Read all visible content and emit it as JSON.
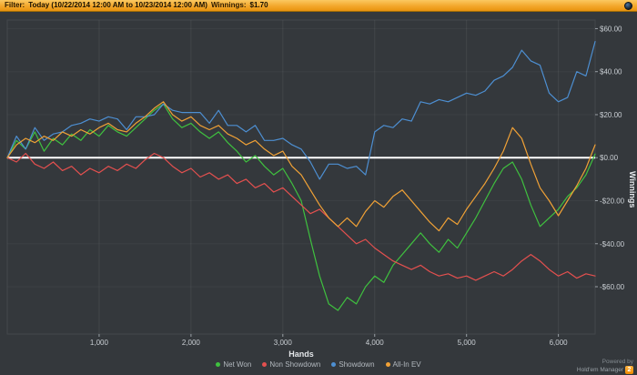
{
  "filter_bar": {
    "filter_label": "Filter:",
    "filter_value": "Today (10/22/2014 12:00 AM to 10/23/2014 12:00 AM)",
    "winnings_label": "Winnings:",
    "winnings_value": "$1.70"
  },
  "footer": {
    "powered_by": "Powered by",
    "brand": "Hold'em Manager",
    "brand_badge": "2"
  },
  "colors": {
    "topbar_start": "#fbc961",
    "topbar_end": "#e8930f",
    "background": "#34383c",
    "zero_line": "#ffffff",
    "grid": "rgba(255,255,255,0.07)"
  },
  "chart_data": {
    "type": "line",
    "title": "",
    "xlabel": "Hands",
    "ylabel": "Winnings",
    "xlim": [
      0,
      6400
    ],
    "ylim": [
      -82,
      64
    ],
    "grid": true,
    "legend_position": "bottom",
    "x_ticks": {
      "values": [
        1000,
        2000,
        3000,
        4000,
        5000,
        6000
      ],
      "labels": [
        "1,000",
        "2,000",
        "3,000",
        "4,000",
        "5,000",
        "6,000"
      ]
    },
    "y_ticks": {
      "values": [
        60,
        40,
        20,
        0,
        -20,
        -40,
        -60
      ],
      "labels": [
        "$60.00",
        "$40.00",
        "$20.00",
        "$0.00",
        "-$20.00",
        "-$40.00",
        "-$60.00"
      ]
    },
    "zero_line_value": 0,
    "x": [
      0,
      100,
      200,
      300,
      400,
      500,
      600,
      700,
      800,
      900,
      1000,
      1100,
      1200,
      1300,
      1400,
      1500,
      1600,
      1700,
      1800,
      1900,
      2000,
      2100,
      2200,
      2300,
      2400,
      2500,
      2600,
      2700,
      2800,
      2900,
      3000,
      3100,
      3200,
      3300,
      3400,
      3500,
      3600,
      3700,
      3800,
      3900,
      4000,
      4100,
      4200,
      4300,
      4400,
      4500,
      4600,
      4700,
      4800,
      4900,
      5000,
      5100,
      5200,
      5300,
      5400,
      5500,
      5600,
      5700,
      5800,
      5900,
      6000,
      6100,
      6200,
      6300,
      6400
    ],
    "series": [
      {
        "name": "Net Won",
        "color": "#3fc13f",
        "values": [
          0,
          8,
          4,
          12,
          3,
          9,
          6,
          11,
          8,
          13,
          10,
          15,
          12,
          10,
          14,
          18,
          22,
          25,
          18,
          14,
          16,
          12,
          9,
          12,
          7,
          3,
          -2,
          1,
          -4,
          -8,
          -5,
          -12,
          -20,
          -38,
          -55,
          -68,
          -71,
          -65,
          -68,
          -60,
          -55,
          -58,
          -50,
          -45,
          -40,
          -35,
          -40,
          -44,
          -38,
          -42,
          -35,
          -28,
          -20,
          -12,
          -5,
          -2,
          -10,
          -22,
          -32,
          -28,
          -24,
          -18,
          -14,
          -8,
          1.7
        ]
      },
      {
        "name": "Non Showdown",
        "color": "#e4504f",
        "values": [
          0,
          -2,
          2,
          -3,
          -5,
          -2,
          -6,
          -4,
          -8,
          -5,
          -7,
          -4,
          -6,
          -3,
          -5,
          -1,
          2,
          0,
          -4,
          -7,
          -5,
          -9,
          -7,
          -10,
          -8,
          -12,
          -10,
          -14,
          -12,
          -16,
          -14,
          -18,
          -22,
          -26,
          -24,
          -28,
          -32,
          -36,
          -40,
          -38,
          -42,
          -45,
          -48,
          -50,
          -52,
          -50,
          -53,
          -55,
          -54,
          -56,
          -55,
          -57,
          -55,
          -53,
          -55,
          -52,
          -48,
          -45,
          -48,
          -52,
          -55,
          -53,
          -56,
          -54,
          -55
        ]
      },
      {
        "name": "Showdown",
        "color": "#4d8fd2",
        "values": [
          0,
          10,
          4,
          14,
          8,
          11,
          12,
          15,
          16,
          18,
          17,
          19,
          18,
          13,
          19,
          19,
          20,
          25,
          22,
          21,
          21,
          21,
          16,
          22,
          15,
          15,
          12,
          15,
          8,
          8,
          9,
          6,
          4,
          -2,
          -10,
          -3,
          -3,
          -5,
          -4,
          -8,
          12,
          15,
          14,
          18,
          17,
          26,
          25,
          27,
          26,
          28,
          30,
          29,
          31,
          36,
          38,
          42,
          50,
          45,
          43,
          30,
          26,
          28,
          40,
          38,
          54
        ]
      },
      {
        "name": "All-In EV",
        "color": "#f0a136",
        "values": [
          0,
          6,
          9,
          7,
          10,
          8,
          12,
          10,
          13,
          11,
          14,
          16,
          13,
          12,
          16,
          19,
          23,
          26,
          20,
          17,
          19,
          15,
          13,
          15,
          11,
          9,
          6,
          8,
          4,
          1,
          3,
          -4,
          -8,
          -15,
          -22,
          -28,
          -32,
          -28,
          -32,
          -25,
          -20,
          -23,
          -18,
          -15,
          -20,
          -25,
          -30,
          -34,
          -28,
          -31,
          -24,
          -18,
          -12,
          -5,
          3,
          14,
          9,
          -3,
          -14,
          -20,
          -27,
          -20,
          -13,
          -5,
          6
        ]
      }
    ]
  }
}
